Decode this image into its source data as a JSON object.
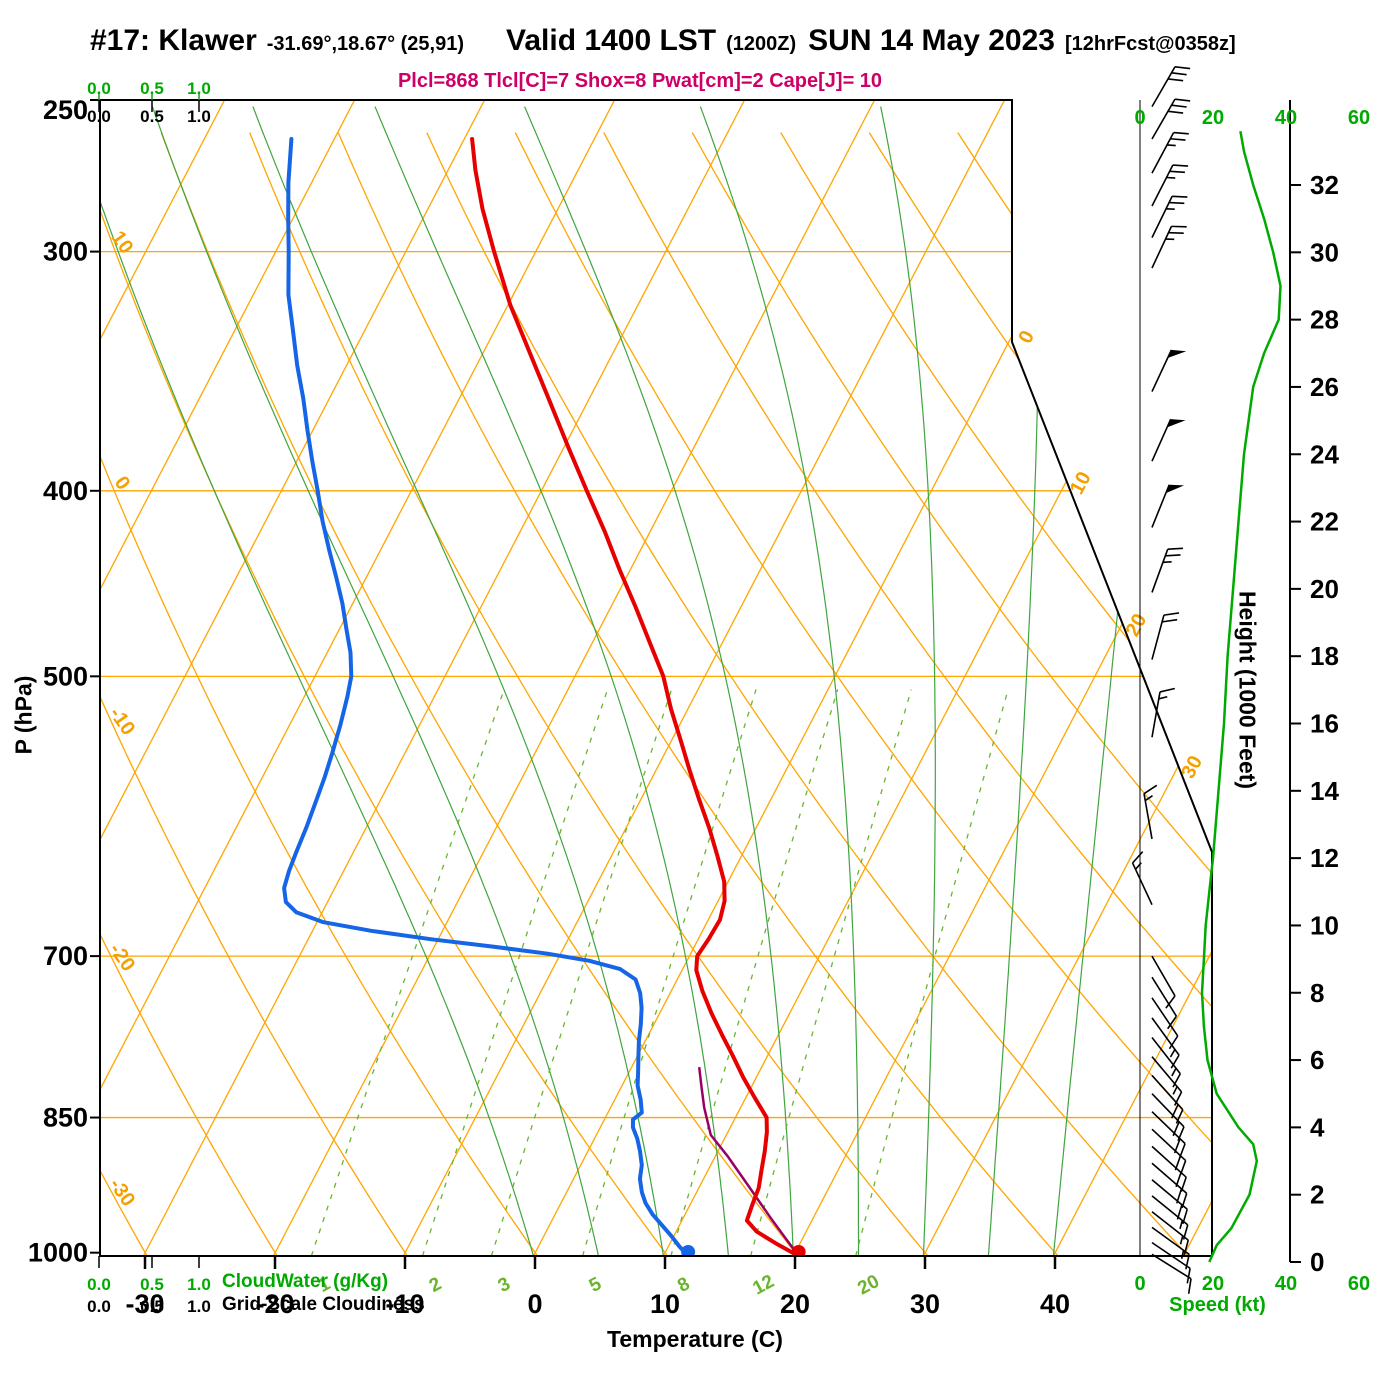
{
  "header": {
    "station_id": "#17: Klawer",
    "coords": "-31.69°,18.67° (25,91)",
    "valid_label": "Valid 1400 LST",
    "valid_z": "(1200Z)",
    "valid_date": "SUN 14 May 2023",
    "fcst_tag": "[12hrFcst@0358z]",
    "stats": "Plcl=868 Tlcl[C]=7 Shox=8 Pwat[cm]=2 Cape[J]= 10"
  },
  "axes": {
    "pressure_label": "P (hPa)",
    "pressure_ticks": [
      250,
      300,
      400,
      500,
      700,
      850,
      1000
    ],
    "temperature_label": "Temperature (C)",
    "temperature_ticks": [
      -30,
      -20,
      -10,
      0,
      10,
      20,
      30,
      40
    ],
    "height_label": "Height (1000 Feet)",
    "height_ticks": [
      0,
      2,
      4,
      6,
      8,
      10,
      12,
      14,
      16,
      18,
      20,
      22,
      24,
      26,
      28,
      30,
      32
    ],
    "speed_label": "Speed (kt)",
    "speed_ticks": [
      0,
      20,
      40,
      60
    ],
    "cloudwater_label": "CloudWater (g/Kg)",
    "cloudiness_label": "Grid-Scale Cloudiness",
    "cloud_scale_ticks": [
      "0.0",
      "0.5",
      "1.0"
    ]
  },
  "chart_data": {
    "type": "line",
    "variant": "skew-t log-p atmospheric sounding",
    "pressure_axis": {
      "scale": "log",
      "range_hpa": [
        250,
        1004
      ]
    },
    "lcl_hpa": 868,
    "tlcl_c": 7,
    "showalter": 8,
    "pwat_cm": 2,
    "cape_j": 10,
    "surface": {
      "pressure_hpa": 1004,
      "temperature_c": 20.4,
      "dewpoint_c": 11.9
    },
    "temperature_profile": [
      [
        1004,
        20.4
      ],
      [
        990,
        18.3
      ],
      [
        975,
        16.2
      ],
      [
        962,
        15.0
      ],
      [
        945,
        14.8
      ],
      [
        925,
        14.6
      ],
      [
        905,
        14.1
      ],
      [
        885,
        13.6
      ],
      [
        865,
        13.0
      ],
      [
        850,
        12.4
      ],
      [
        830,
        10.7
      ],
      [
        810,
        9.0
      ],
      [
        790,
        7.4
      ],
      [
        770,
        5.7
      ],
      [
        750,
        4.0
      ],
      [
        730,
        2.4
      ],
      [
        712,
        1.1
      ],
      [
        700,
        0.6
      ],
      [
        686,
        0.8
      ],
      [
        670,
        0.9
      ],
      [
        655,
        0.5
      ],
      [
        640,
        -0.3
      ],
      [
        620,
        -1.9
      ],
      [
        600,
        -3.6
      ],
      [
        580,
        -5.5
      ],
      [
        560,
        -7.4
      ],
      [
        540,
        -9.3
      ],
      [
        520,
        -11.3
      ],
      [
        500,
        -13.2
      ],
      [
        480,
        -15.6
      ],
      [
        460,
        -18.1
      ],
      [
        440,
        -20.8
      ],
      [
        420,
        -23.5
      ],
      [
        400,
        -26.5
      ],
      [
        380,
        -29.6
      ],
      [
        360,
        -32.8
      ],
      [
        340,
        -36.2
      ],
      [
        320,
        -39.8
      ],
      [
        300,
        -43.2
      ],
      [
        285,
        -45.8
      ],
      [
        272,
        -47.9
      ],
      [
        262,
        -49.4
      ]
    ],
    "dewpoint_profile": [
      [
        1004,
        11.9
      ],
      [
        992,
        10.8
      ],
      [
        980,
        9.8
      ],
      [
        968,
        8.7
      ],
      [
        955,
        7.5
      ],
      [
        942,
        6.5
      ],
      [
        930,
        5.8
      ],
      [
        915,
        5.1
      ],
      [
        900,
        4.7
      ],
      [
        885,
        4.0
      ],
      [
        872,
        3.3
      ],
      [
        860,
        2.5
      ],
      [
        852,
        2.2
      ],
      [
        845,
        2.6
      ],
      [
        832,
        2.0
      ],
      [
        818,
        1.2
      ],
      [
        805,
        0.7
      ],
      [
        790,
        0.1
      ],
      [
        775,
        -0.5
      ],
      [
        760,
        -1.0
      ],
      [
        745,
        -1.6
      ],
      [
        732,
        -2.3
      ],
      [
        720,
        -3.2
      ],
      [
        711,
        -4.8
      ],
      [
        704,
        -7.5
      ],
      [
        698,
        -11.0
      ],
      [
        692,
        -15.5
      ],
      [
        686,
        -20.5
      ],
      [
        679,
        -25.5
      ],
      [
        672,
        -29.5
      ],
      [
        664,
        -32.0
      ],
      [
        656,
        -33.2
      ],
      [
        645,
        -33.9
      ],
      [
        632,
        -34.2
      ],
      [
        618,
        -34.4
      ],
      [
        600,
        -34.6
      ],
      [
        582,
        -34.9
      ],
      [
        565,
        -35.2
      ],
      [
        548,
        -35.6
      ],
      [
        530,
        -36.1
      ],
      [
        512,
        -36.7
      ],
      [
        500,
        -37.2
      ],
      [
        486,
        -38.2
      ],
      [
        472,
        -39.5
      ],
      [
        458,
        -40.8
      ],
      [
        444,
        -42.3
      ],
      [
        430,
        -43.9
      ],
      [
        415,
        -45.6
      ],
      [
        400,
        -47.2
      ],
      [
        386,
        -48.8
      ],
      [
        372,
        -50.4
      ],
      [
        358,
        -52.0
      ],
      [
        344,
        -53.8
      ],
      [
        330,
        -55.5
      ],
      [
        316,
        -57.3
      ],
      [
        300,
        -59.0
      ],
      [
        288,
        -60.4
      ],
      [
        276,
        -61.8
      ],
      [
        262,
        -63.3
      ]
    ],
    "parcel_path": [
      [
        1004,
        20.4
      ],
      [
        960,
        16.8
      ],
      [
        920,
        13.5
      ],
      [
        890,
        10.9
      ],
      [
        868,
        8.8
      ],
      [
        840,
        7.2
      ],
      [
        820,
        6.2
      ],
      [
        800,
        5.2
      ]
    ],
    "winds": [
      [
        252,
        30,
        30
      ],
      [
        262,
        30,
        30
      ],
      [
        273,
        28,
        25
      ],
      [
        284,
        27,
        25
      ],
      [
        295,
        26,
        25
      ],
      [
        306,
        25,
        25
      ],
      [
        355,
        25,
        50
      ],
      [
        386,
        24,
        50
      ],
      [
        418,
        22,
        50
      ],
      [
        452,
        20,
        25
      ],
      [
        490,
        15,
        20
      ],
      [
        538,
        10,
        15
      ],
      [
        608,
        350,
        15
      ],
      [
        658,
        335,
        15
      ],
      [
        700,
        150,
        10
      ],
      [
        718,
        148,
        10
      ],
      [
        736,
        146,
        12
      ],
      [
        754,
        144,
        15
      ],
      [
        772,
        142,
        15
      ],
      [
        790,
        140,
        15
      ],
      [
        808,
        138,
        18
      ],
      [
        826,
        136,
        18
      ],
      [
        844,
        134,
        20
      ],
      [
        862,
        133,
        20
      ],
      [
        880,
        132,
        20
      ],
      [
        898,
        131,
        18
      ],
      [
        916,
        130,
        18
      ],
      [
        934,
        129,
        15
      ],
      [
        952,
        128,
        15
      ],
      [
        970,
        126,
        15
      ],
      [
        988,
        124,
        12
      ],
      [
        1002,
        122,
        10
      ]
    ],
    "wind_speed_profile_kft_kt": [
      [
        0,
        19
      ],
      [
        0.5,
        21
      ],
      [
        1,
        25
      ],
      [
        2,
        30
      ],
      [
        3,
        32
      ],
      [
        3.5,
        31
      ],
      [
        4,
        27
      ],
      [
        5,
        21
      ],
      [
        6,
        18.5
      ],
      [
        7,
        17.5
      ],
      [
        8,
        17
      ],
      [
        9,
        17.5
      ],
      [
        10,
        18
      ],
      [
        11,
        19
      ],
      [
        12,
        20
      ],
      [
        14,
        21.5
      ],
      [
        16,
        23
      ],
      [
        18,
        24
      ],
      [
        20,
        25.5
      ],
      [
        22,
        27
      ],
      [
        24,
        28.5
      ],
      [
        26,
        31
      ],
      [
        27,
        34
      ],
      [
        28,
        38
      ],
      [
        29,
        38.5
      ],
      [
        30,
        36.5
      ],
      [
        31,
        34
      ],
      [
        32,
        31
      ],
      [
        33,
        28.5
      ],
      [
        33.6,
        27.5
      ]
    ],
    "background": {
      "isobars_hpa": [
        300,
        400,
        500,
        700,
        850
      ],
      "isotherms_c": {
        "from": -90,
        "to": 60,
        "step": 10
      },
      "dry_adiabats_c": {
        "from": -30,
        "to": 120,
        "step": 10
      },
      "moist_adiabats_start_c": [
        0,
        5,
        10,
        15,
        20,
        25,
        30,
        35,
        40
      ],
      "mixing_ratio_g_kg": [
        1,
        2,
        3,
        5,
        8,
        12,
        20
      ],
      "dry_adiabat_edge_labels_c": [
        10,
        0,
        -10,
        -20,
        -30
      ],
      "isotherm_edge_labels_c": [
        0,
        10,
        20,
        30
      ]
    }
  },
  "colors": {
    "isoline_orange": "#ffa500",
    "orange_label": "#f5a000",
    "moist_green": "#3fa53f",
    "mixing_green": "#6ab52e",
    "label_green": "#00aa00",
    "temperature_red": "#e60000",
    "dewpoint_blue": "#1565e6",
    "parcel_magenta": "#990066",
    "stats_magenta": "#cc0066",
    "wind_black": "#000000"
  }
}
